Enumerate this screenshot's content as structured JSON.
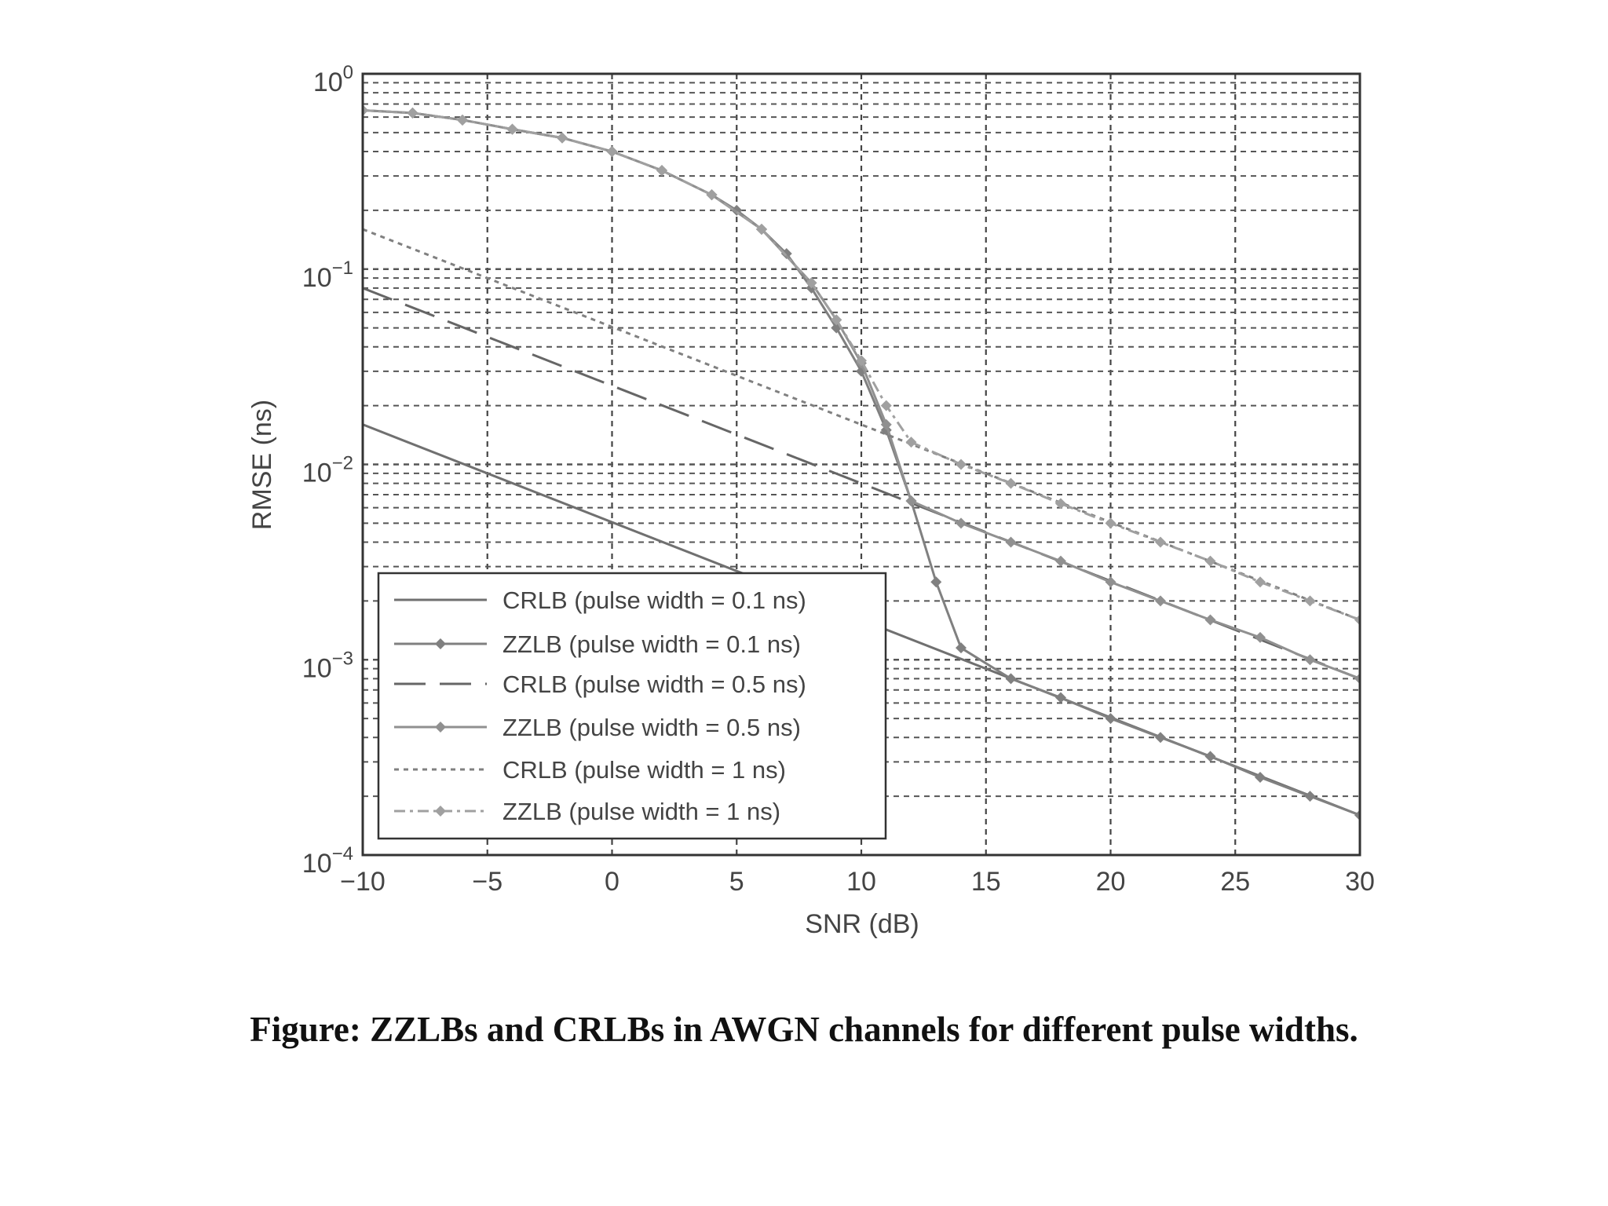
{
  "caption": "Figure: ZZLBs and CRLBs in AWGN channels for different pulse widths.",
  "chart_data": {
    "type": "line",
    "title": "",
    "xlabel": "SNR (dB)",
    "ylabel": "RMSE (ns)",
    "xlim": [
      -10,
      30
    ],
    "ylim": [
      0.0001,
      1
    ],
    "yscale": "log",
    "grid": true,
    "legend_position": "bottom-left",
    "xticks": [
      -10,
      -5,
      0,
      5,
      10,
      15,
      20,
      25,
      30
    ],
    "xtick_labels": [
      "−10",
      "−5",
      "0",
      "5",
      "10",
      "15",
      "20",
      "25",
      "30"
    ],
    "yticks": [
      {
        "value": 1,
        "base": "10",
        "exp": "0"
      },
      {
        "value": 0.1,
        "base": "10",
        "exp": "−1"
      },
      {
        "value": 0.01,
        "base": "10",
        "exp": "−2"
      },
      {
        "value": 0.001,
        "base": "10",
        "exp": "−3"
      },
      {
        "value": 0.0001,
        "base": "10",
        "exp": "−4"
      }
    ],
    "series": [
      {
        "name": "CRLB (pulse width = 0.1 ns)",
        "style": "solid",
        "marker": false,
        "color": "#707070",
        "x": [
          -10,
          30
        ],
        "y": [
          0.016,
          0.00016
        ]
      },
      {
        "name": "ZZLB (pulse width = 0.1 ns)",
        "style": "solid",
        "marker": true,
        "color": "#808080",
        "x": [
          -10,
          -8,
          -6,
          -4,
          -2,
          0,
          2,
          4,
          5,
          6,
          7,
          8,
          9,
          10,
          11,
          12,
          13,
          14,
          16,
          18,
          20,
          22,
          24,
          26,
          28,
          30
        ],
        "y": [
          0.65,
          0.63,
          0.58,
          0.52,
          0.47,
          0.4,
          0.32,
          0.24,
          0.2,
          0.16,
          0.12,
          0.08,
          0.05,
          0.03,
          0.015,
          0.0065,
          0.0025,
          0.00115,
          0.0008,
          0.00064,
          0.0005,
          0.0004,
          0.00032,
          0.00025,
          0.0002,
          0.00016
        ]
      },
      {
        "name": "CRLB (pulse width = 0.5 ns)",
        "style": "longdash",
        "marker": false,
        "color": "#666666",
        "x": [
          -10,
          30
        ],
        "y": [
          0.08,
          0.0008
        ]
      },
      {
        "name": "ZZLB (pulse width = 0.5 ns)",
        "style": "solid",
        "marker": true,
        "color": "#909090",
        "x": [
          -10,
          -8,
          -6,
          -4,
          -2,
          0,
          2,
          4,
          6,
          8,
          9,
          10,
          11,
          12,
          14,
          16,
          18,
          20,
          22,
          24,
          26,
          28,
          30
        ],
        "y": [
          0.65,
          0.63,
          0.58,
          0.52,
          0.47,
          0.4,
          0.32,
          0.24,
          0.16,
          0.085,
          0.055,
          0.033,
          0.016,
          0.0065,
          0.005,
          0.004,
          0.0032,
          0.0025,
          0.002,
          0.0016,
          0.0013,
          0.001,
          0.0008
        ]
      },
      {
        "name": "CRLB (pulse width = 1 ns)",
        "style": "dotted",
        "marker": false,
        "color": "#808080",
        "x": [
          -10,
          30
        ],
        "y": [
          0.16,
          0.0016
        ]
      },
      {
        "name": "ZZLB (pulse width = 1 ns)",
        "style": "dashdot",
        "marker": true,
        "color": "#a0a0a0",
        "x": [
          -10,
          -8,
          -6,
          -4,
          -2,
          0,
          2,
          4,
          6,
          8,
          9,
          10,
          11,
          12,
          14,
          16,
          18,
          20,
          22,
          24,
          26,
          28,
          30
        ],
        "y": [
          0.65,
          0.63,
          0.58,
          0.52,
          0.47,
          0.4,
          0.32,
          0.24,
          0.16,
          0.085,
          0.055,
          0.034,
          0.02,
          0.013,
          0.01,
          0.008,
          0.0063,
          0.005,
          0.004,
          0.0032,
          0.0025,
          0.002,
          0.0016
        ]
      }
    ]
  }
}
